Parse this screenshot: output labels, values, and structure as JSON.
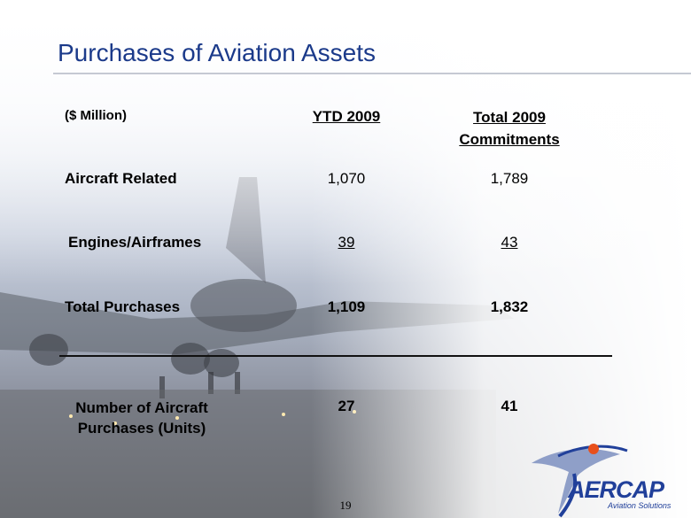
{
  "slide": {
    "title": "Purchases of Aviation Assets",
    "page_number": "19"
  },
  "table": {
    "unit_label": "($ Million)",
    "col_ytd": "YTD 2009",
    "col_total": "Total 2009 Commitments",
    "rows": [
      {
        "label": "Aircraft Related",
        "ytd": "1,070",
        "total": "1,789"
      },
      {
        "label": "Engines/Airframes",
        "ytd": "39",
        "total": "43"
      },
      {
        "label": "Total Purchases",
        "ytd": "1,109",
        "total": "1,832"
      }
    ],
    "units_row": {
      "label": "Number of Aircraft Purchases (Units)",
      "ytd": "27",
      "total": "41"
    }
  },
  "logo": {
    "name": "AERCAP",
    "tagline": "Aviation Solutions",
    "accent_color": "#e8501c",
    "brand_color": "#21409a"
  }
}
